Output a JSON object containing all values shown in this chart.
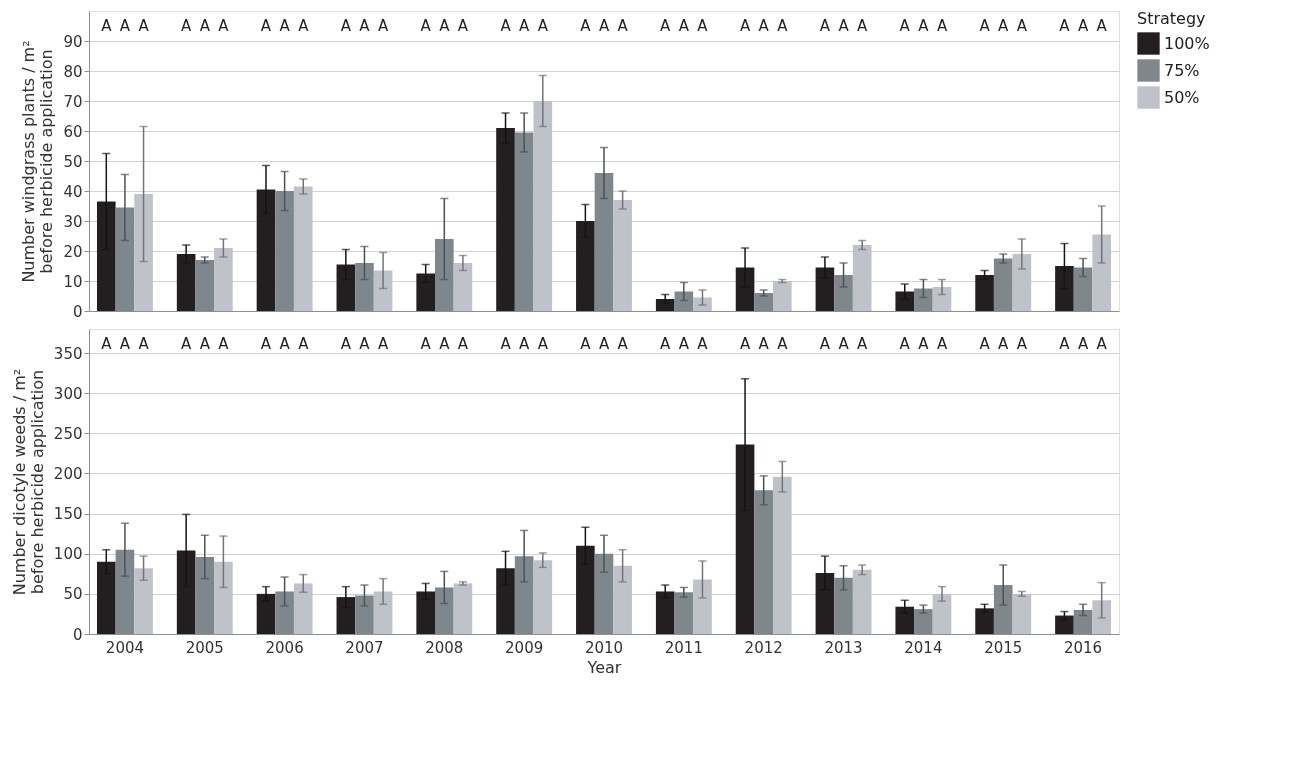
{
  "chart_data": [
    {
      "type": "bar",
      "ylabel": "Number windgrass plants / m²\nbefore herbicide application",
      "legend_title": "Strategy",
      "legend": "top right",
      "grid": "y",
      "tick_labels": "y",
      "categories": [
        "2004",
        "2005",
        "2006",
        "2007",
        "2008",
        "2009",
        "2010",
        "2011",
        "2012",
        "2013",
        "2014",
        "2015",
        "2016"
      ],
      "ylim": [
        0,
        100
      ],
      "yticks": [
        0,
        10,
        20,
        30,
        40,
        50,
        60,
        70,
        80,
        90
      ],
      "series": [
        {
          "name": "100%",
          "color": "#231f20",
          "values": [
            36.5,
            19,
            40.5,
            15.5,
            12.5,
            61,
            30,
            4,
            14.5,
            14.5,
            6.5,
            12,
            15
          ],
          "errors": [
            16,
            3,
            8,
            5,
            3,
            5,
            5.5,
            1.5,
            6.5,
            3.5,
            2.5,
            1.5,
            7.5
          ]
        },
        {
          "name": "75%",
          "color": "#7f878d",
          "values": [
            34.5,
            17,
            40,
            16,
            24,
            59.5,
            46,
            6.5,
            6,
            12,
            7.5,
            17.5,
            14.5
          ],
          "errors": [
            11,
            1,
            6.5,
            5.5,
            13.5,
            6.5,
            8.5,
            3,
            1,
            4,
            3,
            1.5,
            3
          ]
        },
        {
          "name": "50%",
          "color": "#bfc2c8",
          "values": [
            39,
            21,
            41.5,
            13.5,
            16,
            70,
            37,
            4.5,
            10,
            22,
            8,
            19,
            25.5
          ],
          "errors": [
            22.5,
            3,
            2.5,
            6,
            2.5,
            8.5,
            3,
            2.5,
            0.5,
            1.5,
            2.5,
            5,
            9.5
          ]
        }
      ],
      "annotations": [
        "A",
        "A",
        "A",
        "A",
        "A",
        "A",
        "A",
        "A",
        "A",
        "A",
        "A",
        "A",
        "A",
        "A",
        "A",
        "A",
        "A",
        "A",
        "A",
        "A",
        "A",
        "A",
        "A",
        "A",
        "A",
        "A",
        "A",
        "A",
        "A",
        "A",
        "A",
        "A",
        "A",
        "A",
        "A",
        "A",
        "A",
        "A",
        "A"
      ]
    },
    {
      "type": "bar",
      "ylabel": "Number dicotyle weeds / m²\nbefore herbicide application",
      "xlabel": "Year",
      "grid": "y",
      "categories": [
        "2004",
        "2005",
        "2006",
        "2007",
        "2008",
        "2009",
        "2010",
        "2011",
        "2012",
        "2013",
        "2014",
        "2015",
        "2016"
      ],
      "ylim": [
        0,
        380
      ],
      "yticks": [
        0,
        50,
        100,
        150,
        200,
        250,
        300,
        350
      ],
      "series": [
        {
          "name": "100%",
          "color": "#231f20",
          "values": [
            90,
            104,
            50,
            46,
            53,
            82,
            110,
            53,
            236,
            76,
            34,
            32,
            23
          ],
          "errors": [
            15,
            45,
            9,
            13,
            10,
            21,
            23,
            8,
            82,
            21,
            8,
            5,
            5
          ]
        },
        {
          "name": "75%",
          "color": "#7f878d",
          "values": [
            105,
            96,
            53,
            48,
            58,
            97,
            100,
            52,
            179,
            70,
            31,
            61,
            30
          ],
          "errors": [
            33,
            27,
            18,
            13,
            20,
            32,
            23,
            6,
            18,
            15,
            5,
            25,
            7
          ]
        },
        {
          "name": "50%",
          "color": "#bfc2c8",
          "values": [
            82,
            90,
            63,
            53,
            63,
            92,
            85,
            68,
            196,
            80,
            50,
            50,
            42
          ],
          "errors": [
            15,
            32,
            11,
            16,
            2,
            9,
            20,
            23,
            19,
            6,
            9,
            3,
            22
          ]
        }
      ],
      "annotations": [
        "A",
        "A",
        "A",
        "A",
        "A",
        "A",
        "A",
        "A",
        "A",
        "A",
        "A",
        "A",
        "A",
        "A",
        "A",
        "A",
        "A",
        "A",
        "A",
        "A",
        "A",
        "A",
        "A",
        "A",
        "A",
        "A",
        "A",
        "A",
        "A",
        "A",
        "A",
        "A",
        "A",
        "A",
        "A",
        "A",
        "A",
        "A",
        "A"
      ]
    }
  ]
}
